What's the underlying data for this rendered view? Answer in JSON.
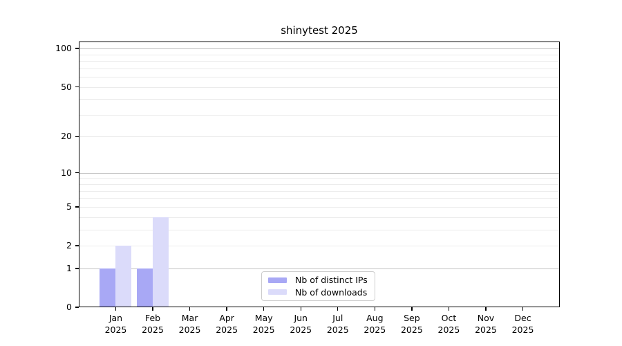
{
  "chart_data": {
    "type": "bar",
    "title": "shinytest 2025",
    "categories": [
      "Jan",
      "Feb",
      "Mar",
      "Apr",
      "May",
      "Jun",
      "Jul",
      "Aug",
      "Sep",
      "Oct",
      "Nov",
      "Dec"
    ],
    "year_label": "2025",
    "series": [
      {
        "name": "Nb of distinct IPs",
        "color": "#a8a8f5",
        "values": [
          1,
          1,
          0,
          0,
          0,
          0,
          0,
          0,
          0,
          0,
          0,
          0
        ]
      },
      {
        "name": "Nb of downloads",
        "color": "#dbdbfa",
        "values": [
          2,
          4,
          0,
          0,
          0,
          0,
          0,
          0,
          0,
          0,
          0,
          0
        ]
      }
    ],
    "xlabel": "",
    "ylabel": "",
    "yscale": "log1p",
    "ylim": [
      0,
      113
    ],
    "y_ticks": [
      0,
      1,
      2,
      5,
      10,
      20,
      50,
      100
    ],
    "y_major_gridlines": [
      1,
      10,
      100
    ],
    "y_minor_gridlines": [
      2,
      3,
      4,
      5,
      6,
      7,
      8,
      9,
      20,
      30,
      40,
      50,
      60,
      70,
      80,
      90
    ],
    "grid": true,
    "legend_position": "bottom-center"
  },
  "style": {
    "background": "#ffffff",
    "axis_color": "#000000",
    "major_grid_color": "#c3c3c3",
    "minor_grid_color": "#ebebeb",
    "legend_border_color": "#cccccc"
  }
}
